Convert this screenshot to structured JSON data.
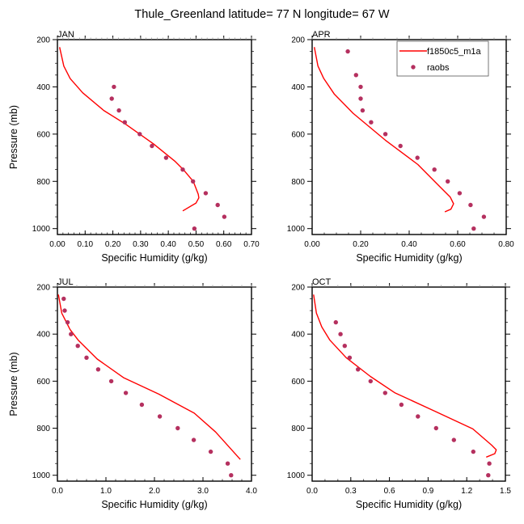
{
  "figure_title": "Thule_Greenland  latitude= 77 N longitude= 67 W",
  "colors": {
    "model_line": "#ff0000",
    "raobs_marker": "#b5305f",
    "axis": "#000000",
    "legend_border": "#555555"
  },
  "legend": {
    "entries": [
      {
        "label": "f1850c5_m1a",
        "type": "line"
      },
      {
        "label": "raobs",
        "type": "marker"
      }
    ],
    "panel": "APR",
    "placement": "top-right"
  },
  "chart_data": [
    {
      "type": "line",
      "panel": "JAN",
      "title": "JAN",
      "xlabel": "Specific Humidity (g/kg)",
      "ylabel": "Pressure (mb)",
      "xlim": [
        0,
        0.7
      ],
      "ylim": [
        1025,
        200
      ],
      "y_inverted": true,
      "xticks": [
        0,
        0.1,
        0.2,
        0.3,
        0.4,
        0.5,
        0.6,
        0.7
      ],
      "xtick_labels": [
        "0.00",
        "0.10",
        "0.20",
        "0.30",
        "0.40",
        "0.50",
        "0.60",
        "0.70"
      ],
      "x_minor_step": 0.02,
      "yticks": [
        200,
        400,
        600,
        800,
        1000
      ],
      "ytick_labels": [
        "200",
        "400",
        "600",
        "800",
        "1000"
      ],
      "y_minor_step": 50,
      "series": [
        {
          "name": "f1850c5_m1a",
          "kind": "line",
          "x": [
            0.008,
            0.023,
            0.046,
            0.091,
            0.167,
            0.245,
            0.347,
            0.425,
            0.454,
            0.49,
            0.508,
            0.51,
            0.5,
            0.452
          ],
          "y": [
            232,
            312,
            365,
            425,
            500,
            557,
            642,
            716,
            750,
            800,
            855,
            870,
            892,
            925
          ]
        },
        {
          "name": "raobs",
          "kind": "scatter",
          "x": [
            0.204,
            0.196,
            0.222,
            0.243,
            0.297,
            0.341,
            0.392,
            0.452,
            0.489,
            0.535,
            0.578,
            0.602,
            0.494
          ],
          "y": [
            400,
            450,
            500,
            550,
            600,
            650,
            700,
            750,
            800,
            850,
            900,
            950,
            1000
          ]
        }
      ]
    },
    {
      "type": "line",
      "panel": "APR",
      "title": "APR",
      "xlabel": "Specific Humidity (g/kg)",
      "ylabel": "",
      "xlim": [
        0,
        0.8
      ],
      "ylim": [
        1025,
        200
      ],
      "y_inverted": true,
      "xticks": [
        0,
        0.2,
        0.4,
        0.6,
        0.8
      ],
      "xtick_labels": [
        "0.00",
        "0.20",
        "0.40",
        "0.60",
        "0.80"
      ],
      "x_minor_step": 0.05,
      "yticks": [
        200,
        400,
        600,
        800,
        1000
      ],
      "ytick_labels": [
        "200",
        "400",
        "600",
        "800",
        "1000"
      ],
      "y_minor_step": 50,
      "series": [
        {
          "name": "f1850c5_m1a",
          "kind": "line",
          "x": [
            0.009,
            0.024,
            0.047,
            0.091,
            0.169,
            0.302,
            0.436,
            0.524,
            0.569,
            0.583,
            0.572,
            0.547
          ],
          "y": [
            232,
            312,
            363,
            430,
            512,
            626,
            729,
            820,
            866,
            895,
            918,
            929
          ]
        },
        {
          "name": "raobs",
          "kind": "scatter",
          "x": [
            0.147,
            0.181,
            0.2,
            0.2,
            0.208,
            0.243,
            0.302,
            0.364,
            0.434,
            0.504,
            0.559,
            0.608,
            0.653,
            0.708,
            0.666
          ],
          "y": [
            250,
            350,
            400,
            450,
            500,
            550,
            600,
            650,
            700,
            750,
            800,
            850,
            900,
            950,
            1000
          ]
        }
      ]
    },
    {
      "type": "line",
      "panel": "JUL",
      "title": "JUL",
      "xlabel": "Specific Humidity (g/kg)",
      "ylabel": "Pressure (mb)",
      "xlim": [
        0,
        4.0
      ],
      "ylim": [
        1025,
        200
      ],
      "y_inverted": true,
      "xticks": [
        0,
        1,
        2,
        3,
        4
      ],
      "xtick_labels": [
        "0.0",
        "1.0",
        "2.0",
        "3.0",
        "4.0"
      ],
      "x_minor_step": 0.2,
      "yticks": [
        200,
        400,
        600,
        800,
        1000
      ],
      "ytick_labels": [
        "200",
        "400",
        "600",
        "800",
        "1000"
      ],
      "y_minor_step": 50,
      "series": [
        {
          "name": "f1850c5_m1a",
          "kind": "line",
          "x": [
            0.02,
            0.09,
            0.26,
            0.43,
            0.82,
            1.37,
            2.09,
            2.82,
            3.26,
            3.77
          ],
          "y": [
            232,
            311,
            380,
            426,
            506,
            586,
            655,
            736,
            816,
            933
          ]
        },
        {
          "name": "raobs",
          "kind": "scatter",
          "x": [
            0.13,
            0.15,
            0.21,
            0.28,
            0.42,
            0.6,
            0.84,
            1.11,
            1.41,
            1.74,
            2.11,
            2.48,
            2.81,
            3.16,
            3.51,
            3.58
          ],
          "y": [
            250,
            300,
            350,
            400,
            450,
            500,
            550,
            600,
            650,
            700,
            750,
            800,
            850,
            900,
            950,
            1000
          ]
        }
      ]
    },
    {
      "type": "line",
      "panel": "OCT",
      "title": "OCT",
      "xlabel": "Specific Humidity (g/kg)",
      "ylabel": "",
      "xlim": [
        0,
        1.5
      ],
      "ylim": [
        1025,
        200
      ],
      "y_inverted": true,
      "xticks": [
        0,
        0.3,
        0.6,
        0.9,
        1.2,
        1.5
      ],
      "xtick_labels": [
        "0.0",
        "0.3",
        "0.6",
        "0.9",
        "1.2",
        "1.5"
      ],
      "x_minor_step": 0.1,
      "yticks": [
        200,
        400,
        600,
        800,
        1000
      ],
      "ytick_labels": [
        "200",
        "400",
        "600",
        "800",
        "1000"
      ],
      "y_minor_step": 50,
      "series": [
        {
          "name": "f1850c5_m1a",
          "kind": "line",
          "x": [
            0.011,
            0.033,
            0.075,
            0.138,
            0.264,
            0.452,
            0.64,
            0.933,
            1.247,
            1.393,
            1.429,
            1.418,
            1.351
          ],
          "y": [
            232,
            311,
            369,
            426,
            500,
            580,
            649,
            723,
            803,
            872,
            892,
            908,
            923
          ]
        },
        {
          "name": "raobs",
          "kind": "scatter",
          "x": [
            0.184,
            0.22,
            0.253,
            0.291,
            0.356,
            0.454,
            0.567,
            0.693,
            0.821,
            0.962,
            1.1,
            1.251,
            1.375,
            1.367
          ],
          "y": [
            350,
            400,
            450,
            500,
            550,
            600,
            650,
            700,
            750,
            800,
            850,
            900,
            950,
            1000
          ]
        }
      ]
    }
  ]
}
